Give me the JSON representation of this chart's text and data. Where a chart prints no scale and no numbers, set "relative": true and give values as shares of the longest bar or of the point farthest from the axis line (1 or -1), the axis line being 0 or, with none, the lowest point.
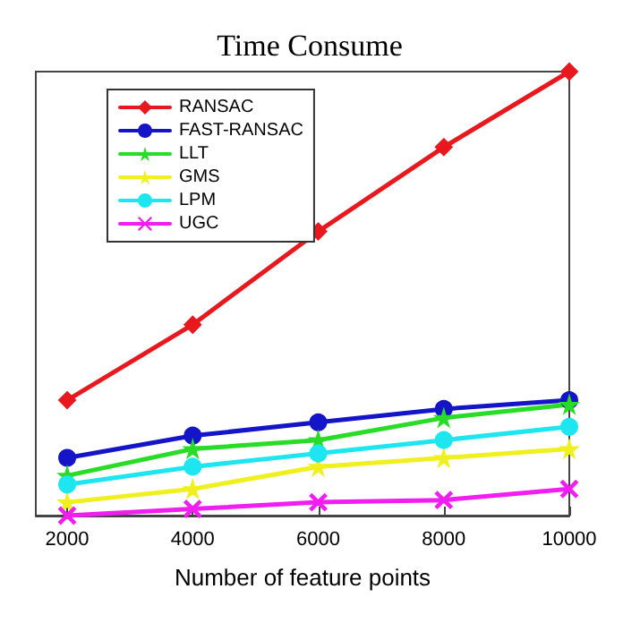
{
  "chart_data": {
    "type": "line",
    "title": "Time Consume",
    "xlabel": "Number of feature points",
    "relative": true,
    "x": [
      2000,
      4000,
      6000,
      8000,
      10000
    ],
    "xlim": [
      1500,
      10000
    ],
    "xticks": [
      2000,
      4000,
      6000,
      8000,
      10000
    ],
    "legend": "top left",
    "grid": false,
    "line_style": "solid",
    "series": [
      {
        "name": "RANSAC",
        "color": "#e8191e",
        "marker": "diamond",
        "values": [
          0.26,
          0.43,
          0.64,
          0.83,
          1
        ]
      },
      {
        "name": "FAST-RANSAC",
        "color": "#1414c8",
        "marker": "circle",
        "values": [
          0.13,
          0.18,
          0.21,
          0.24,
          0.26
        ]
      },
      {
        "name": "LLT",
        "color": "#28dc28",
        "marker": "star",
        "values": [
          0.09,
          0.15,
          0.17,
          0.22,
          0.25
        ]
      },
      {
        "name": "GMS",
        "color": "#f0f01e",
        "marker": "star",
        "values": [
          0.03,
          0.06,
          0.11,
          0.13,
          0.15
        ]
      },
      {
        "name": "LPM",
        "color": "#1ee6f0",
        "marker": "circle",
        "values": [
          0.07,
          0.11,
          0.14,
          0.17,
          0.2
        ]
      },
      {
        "name": "UGC",
        "color": "#f01ef0",
        "marker": "cross",
        "values": [
          0,
          0.015,
          0.03,
          0.035,
          0.06
        ]
      }
    ]
  }
}
